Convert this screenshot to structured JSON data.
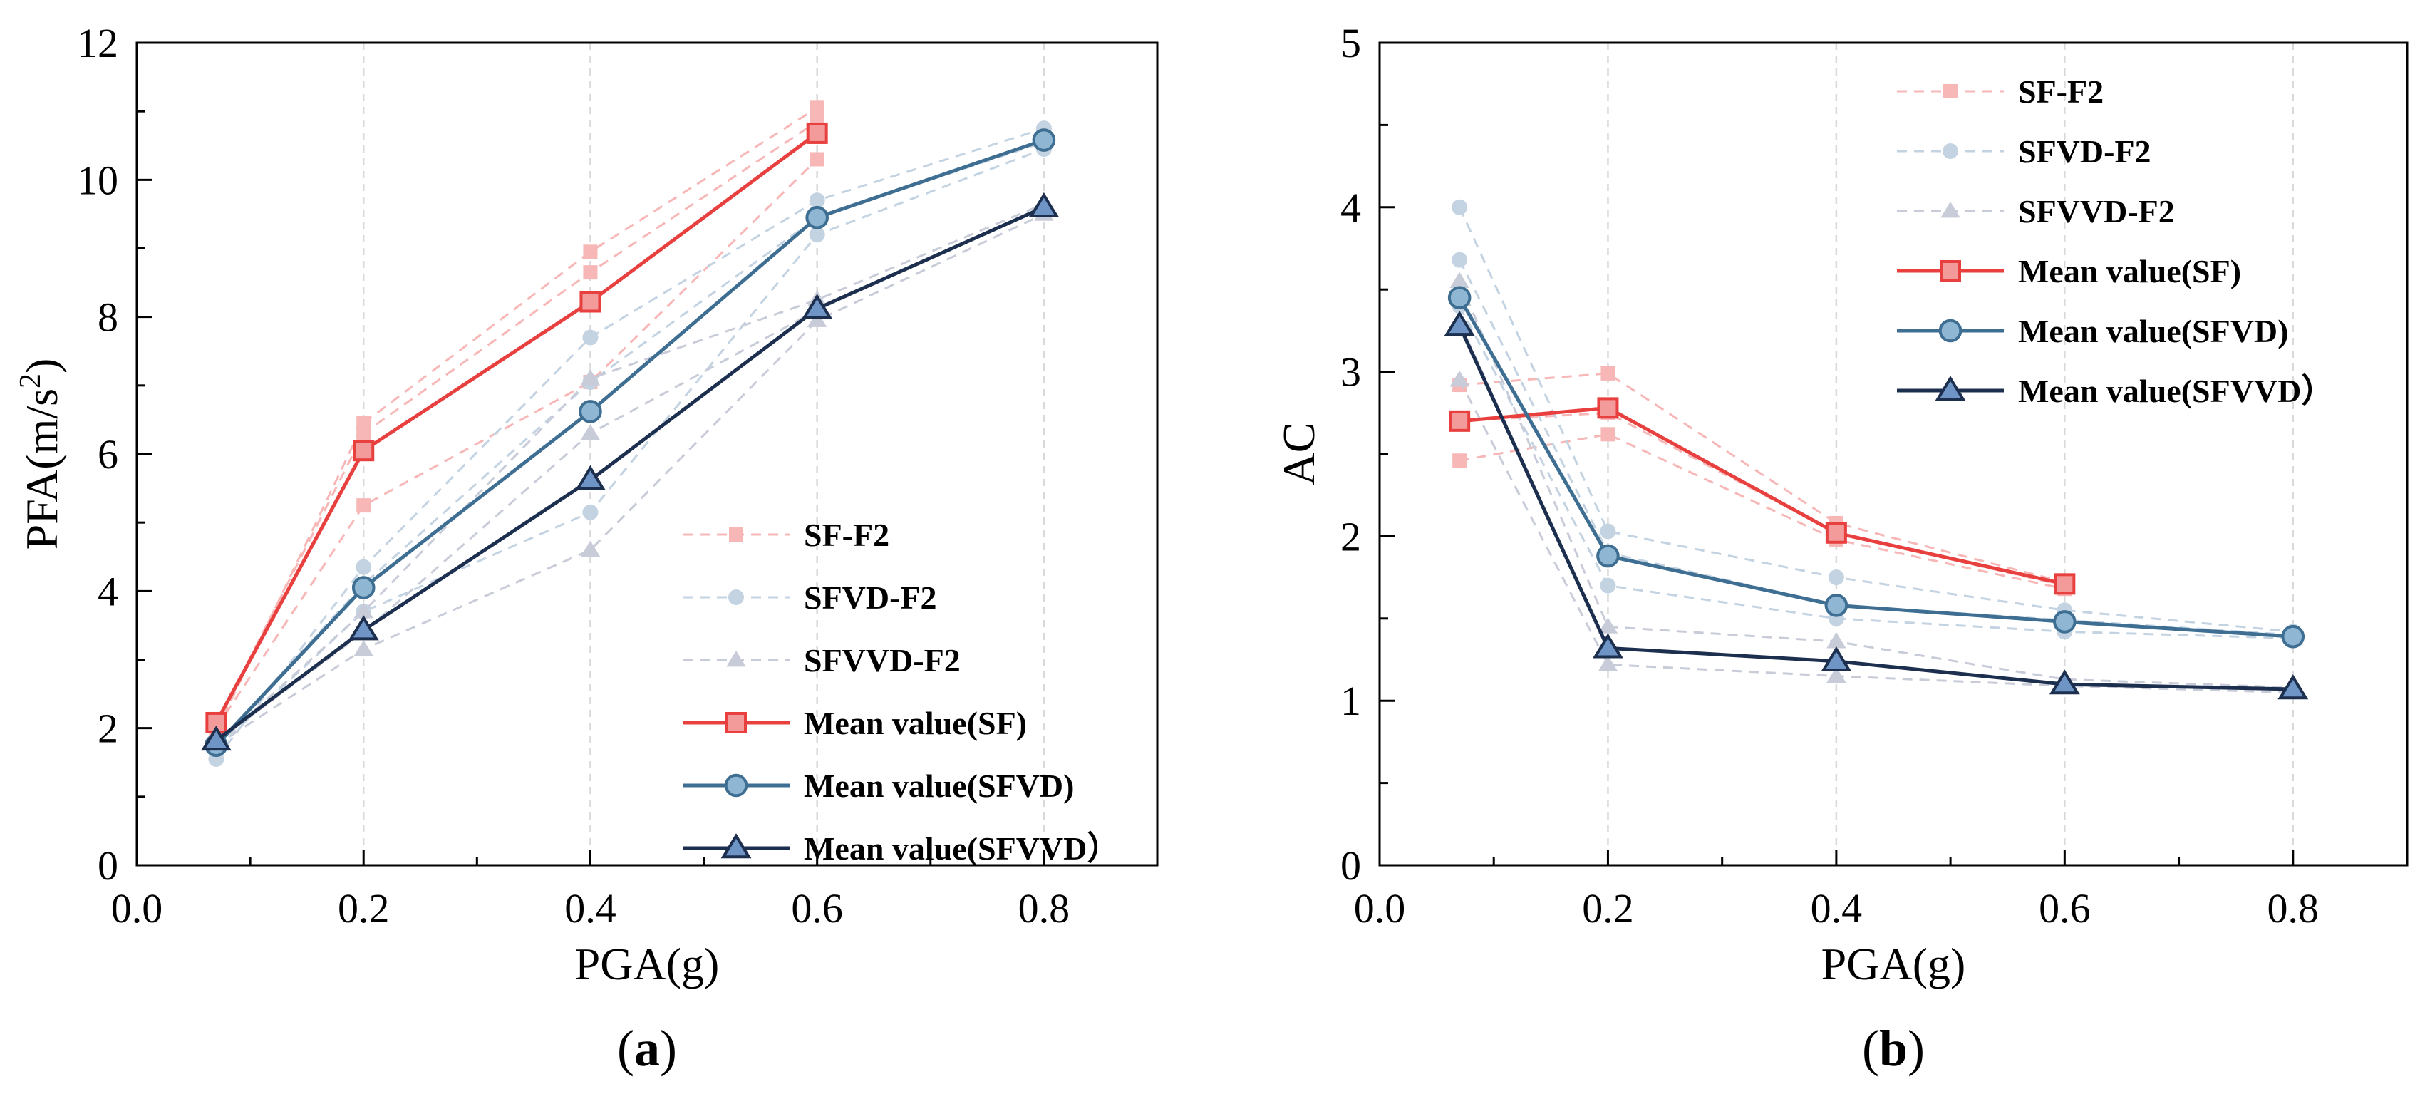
{
  "chart_data": [
    {
      "type": "line",
      "panel": "(a)",
      "panel_letter": "a",
      "xlabel": "PGA(g)",
      "ylabel": "PFA(m/s2)",
      "ylabel_base": "PFA(m/s",
      "ylabel_sup": "2",
      "ylabel_close": ")",
      "xlim": [
        0.0,
        0.9
      ],
      "ylim": [
        0,
        12
      ],
      "xticks": [
        "0.0",
        "0.2",
        "0.4",
        "0.6",
        "0.8"
      ],
      "yticks": [
        "0",
        "2",
        "4",
        "6",
        "8",
        "10",
        "12"
      ],
      "legend_position": "bottom-right",
      "series": [
        {
          "name": "SF-F2",
          "style": "faint",
          "marker": "square",
          "color": "#f7b7b7",
          "x": [
            0.07,
            0.2,
            0.4,
            0.6
          ],
          "y": [
            1.95,
            6.45,
            8.95,
            11.05
          ]
        },
        {
          "name": "SF-F2 ",
          "style": "faint-unlabeled",
          "marker": "square",
          "color": "#f7b7b7",
          "x": [
            0.07,
            0.2,
            0.4,
            0.6
          ],
          "y": [
            2.05,
            6.3,
            8.65,
            10.85
          ]
        },
        {
          "name": "SF-F2  ",
          "style": "faint-unlabeled",
          "marker": "square",
          "color": "#f7b7b7",
          "x": [
            0.07,
            0.2,
            0.4,
            0.6
          ],
          "y": [
            2.0,
            5.25,
            7.05,
            10.3
          ]
        },
        {
          "name": "SFVD-F2",
          "style": "faint",
          "marker": "circle",
          "color": "#c3d3e2",
          "x": [
            0.07,
            0.2,
            0.4,
            0.6,
            0.8
          ],
          "y": [
            1.55,
            4.35,
            7.7,
            9.7,
            10.75
          ]
        },
        {
          "name": "SFVD-F2 ",
          "style": "faint-unlabeled",
          "marker": "circle",
          "color": "#c3d3e2",
          "x": [
            0.07,
            0.2,
            0.4,
            0.6,
            0.8
          ],
          "y": [
            1.75,
            4.1,
            7.05,
            9.45,
            10.55
          ]
        },
        {
          "name": "SFVD-F2  ",
          "style": "faint-unlabeled",
          "marker": "circle",
          "color": "#c3d3e2",
          "x": [
            0.07,
            0.2,
            0.4,
            0.6,
            0.8
          ],
          "y": [
            1.7,
            3.7,
            5.15,
            9.2,
            10.45
          ]
        },
        {
          "name": "SFVVD-F2",
          "style": "faint",
          "marker": "triangle",
          "color": "#c8ccd8",
          "x": [
            0.07,
            0.2,
            0.4,
            0.6,
            0.8
          ],
          "y": [
            1.75,
            3.7,
            7.1,
            8.25,
            9.65
          ]
        },
        {
          "name": "SFVVD-F2 ",
          "style": "faint-unlabeled",
          "marker": "triangle",
          "color": "#c8ccd8",
          "x": [
            0.07,
            0.2,
            0.4,
            0.6,
            0.8
          ],
          "y": [
            1.8,
            3.4,
            6.3,
            8.1,
            9.6
          ]
        },
        {
          "name": "SFVVD-F2  ",
          "style": "faint-unlabeled",
          "marker": "triangle",
          "color": "#c8ccd8",
          "x": [
            0.07,
            0.2,
            0.4,
            0.6,
            0.8
          ],
          "y": [
            1.75,
            3.15,
            4.6,
            7.95,
            9.5
          ]
        },
        {
          "name": "Mean value(SF)",
          "style": "mean",
          "marker": "square",
          "color": "#e8403f",
          "fill": "#f39a9a",
          "x": [
            0.07,
            0.2,
            0.4,
            0.6
          ],
          "y": [
            2.08,
            6.05,
            8.22,
            10.68
          ]
        },
        {
          "name": "Mean value(SFVD)",
          "style": "mean",
          "marker": "circle",
          "color": "#3e6e92",
          "fill": "#8fb6d3",
          "x": [
            0.07,
            0.2,
            0.4,
            0.6,
            0.8
          ],
          "y": [
            1.75,
            4.05,
            6.62,
            9.45,
            10.58
          ]
        },
        {
          "name": "Mean value(SFVVD）",
          "style": "mean",
          "marker": "triangle",
          "color": "#1d2f4e",
          "fill": "#6f95c7",
          "x": [
            0.07,
            0.2,
            0.4,
            0.6,
            0.8
          ],
          "y": [
            1.82,
            3.43,
            5.62,
            8.12,
            9.6
          ]
        }
      ]
    },
    {
      "type": "line",
      "panel": "(b)",
      "panel_letter": "b",
      "xlabel": "PGA(g)",
      "ylabel": "AC",
      "xlim": [
        0.0,
        0.9
      ],
      "ylim": [
        0,
        5
      ],
      "xticks": [
        "0.0",
        "0.2",
        "0.4",
        "0.6",
        "0.8"
      ],
      "yticks": [
        "0",
        "1",
        "2",
        "3",
        "4",
        "5"
      ],
      "legend_position": "top-right",
      "series": [
        {
          "name": "SF-F2",
          "style": "faint",
          "marker": "square",
          "color": "#f7b7b7",
          "x": [
            0.07,
            0.2,
            0.4,
            0.6
          ],
          "y": [
            2.92,
            2.99,
            2.08,
            1.72
          ]
        },
        {
          "name": "SF-F2 ",
          "style": "faint-unlabeled",
          "marker": "square",
          "color": "#f7b7b7",
          "x": [
            0.07,
            0.2,
            0.4,
            0.6
          ],
          "y": [
            2.7,
            2.75,
            2.02,
            1.7
          ]
        },
        {
          "name": "SF-F2  ",
          "style": "faint-unlabeled",
          "marker": "square",
          "color": "#f7b7b7",
          "x": [
            0.07,
            0.2,
            0.4,
            0.6
          ],
          "y": [
            2.46,
            2.62,
            1.98,
            1.68
          ]
        },
        {
          "name": "SFVD-F2",
          "style": "faint",
          "marker": "circle",
          "color": "#c3d3e2",
          "x": [
            0.07,
            0.2,
            0.4,
            0.6,
            0.8
          ],
          "y": [
            4.0,
            2.03,
            1.75,
            1.55,
            1.42
          ]
        },
        {
          "name": "SFVD-F2 ",
          "style": "faint-unlabeled",
          "marker": "circle",
          "color": "#c3d3e2",
          "x": [
            0.07,
            0.2,
            0.4,
            0.6,
            0.8
          ],
          "y": [
            3.68,
            1.9,
            1.58,
            1.49,
            1.4
          ]
        },
        {
          "name": "SFVD-F2  ",
          "style": "faint-unlabeled",
          "marker": "circle",
          "color": "#c3d3e2",
          "x": [
            0.07,
            0.2,
            0.4,
            0.6,
            0.8
          ],
          "y": [
            3.4,
            1.7,
            1.5,
            1.42,
            1.38
          ]
        },
        {
          "name": "SFVVD-F2",
          "style": "faint",
          "marker": "triangle",
          "color": "#c8ccd8",
          "x": [
            0.07,
            0.2,
            0.4,
            0.6,
            0.8
          ],
          "y": [
            3.55,
            1.45,
            1.36,
            1.13,
            1.08
          ]
        },
        {
          "name": "SFVVD-F2 ",
          "style": "faint-unlabeled",
          "marker": "triangle",
          "color": "#c8ccd8",
          "x": [
            0.07,
            0.2,
            0.4,
            0.6,
            0.8
          ],
          "y": [
            3.3,
            1.32,
            1.24,
            1.1,
            1.07
          ]
        },
        {
          "name": "SFVVD-F2  ",
          "style": "faint-unlabeled",
          "marker": "triangle",
          "color": "#c8ccd8",
          "x": [
            0.07,
            0.2,
            0.4,
            0.6,
            0.8
          ],
          "y": [
            2.95,
            1.22,
            1.15,
            1.09,
            1.05
          ]
        },
        {
          "name": "Mean value(SF)",
          "style": "mean",
          "marker": "square",
          "color": "#e8403f",
          "fill": "#f39a9a",
          "x": [
            0.07,
            0.2,
            0.4,
            0.6
          ],
          "y": [
            2.7,
            2.78,
            2.02,
            1.71
          ]
        },
        {
          "name": "Mean value(SFVD)",
          "style": "mean",
          "marker": "circle",
          "color": "#3e6e92",
          "fill": "#8fb6d3",
          "x": [
            0.07,
            0.2,
            0.4,
            0.6,
            0.8
          ],
          "y": [
            3.45,
            1.88,
            1.58,
            1.48,
            1.39
          ]
        },
        {
          "name": "Mean value(SFVVD）",
          "style": "mean",
          "marker": "triangle",
          "color": "#1d2f4e",
          "fill": "#6f95c7",
          "x": [
            0.07,
            0.2,
            0.4,
            0.6,
            0.8
          ],
          "y": [
            3.28,
            1.32,
            1.24,
            1.1,
            1.07
          ]
        }
      ]
    }
  ]
}
